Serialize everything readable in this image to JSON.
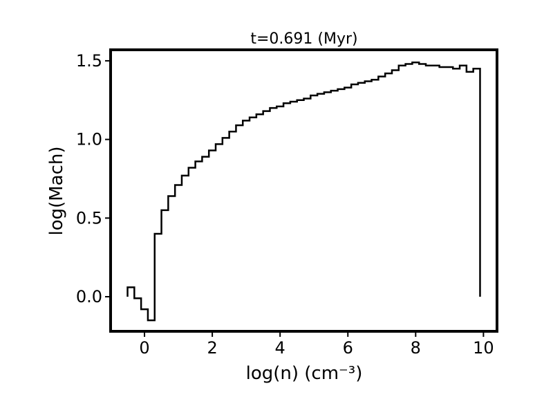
{
  "chart_data": {
    "type": "line",
    "drawstyle": "steps-mid",
    "title": "t=0.691 (Myr)",
    "xlabel": "log(n) (cm⁻³)",
    "ylabel": "log(Mach)",
    "xlim": [
      -1.0,
      10.4
    ],
    "ylim": [
      -0.22,
      1.57
    ],
    "xticks": [
      0,
      2,
      4,
      6,
      8,
      10
    ],
    "xtick_labels": [
      "0",
      "2",
      "4",
      "6",
      "8",
      "10"
    ],
    "yticks": [
      0.0,
      0.5,
      1.0,
      1.5
    ],
    "ytick_labels": [
      "0.0",
      "0.5",
      "1.0",
      "1.5"
    ],
    "grid": false,
    "legend": "none",
    "line_color": "#000000",
    "series": [
      {
        "x": [
          -0.4,
          -0.2,
          0.0,
          0.2,
          0.4,
          0.6,
          0.8,
          1.0,
          1.2,
          1.4,
          1.6,
          1.8,
          2.0,
          2.2,
          2.4,
          2.6,
          2.8,
          3.0,
          3.2,
          3.4,
          3.6,
          3.8,
          4.0,
          4.2,
          4.4,
          4.6,
          4.8,
          5.0,
          5.2,
          5.4,
          5.6,
          5.8,
          6.0,
          6.2,
          6.4,
          6.6,
          6.8,
          7.0,
          7.2,
          7.4,
          7.6,
          7.8,
          8.0,
          8.2,
          8.4,
          8.6,
          8.8,
          9.0,
          9.2,
          9.4,
          9.6,
          9.8
        ],
        "y": [
          0.06,
          -0.01,
          -0.08,
          -0.15,
          0.4,
          0.55,
          0.64,
          0.71,
          0.77,
          0.82,
          0.86,
          0.89,
          0.93,
          0.97,
          1.01,
          1.05,
          1.09,
          1.12,
          1.14,
          1.16,
          1.18,
          1.2,
          1.21,
          1.23,
          1.24,
          1.25,
          1.26,
          1.28,
          1.29,
          1.3,
          1.31,
          1.32,
          1.33,
          1.35,
          1.36,
          1.37,
          1.38,
          1.4,
          1.42,
          1.44,
          1.47,
          1.48,
          1.49,
          1.48,
          1.47,
          1.47,
          1.46,
          1.46,
          1.45,
          1.47,
          1.43,
          1.45
        ],
        "end_drop_to": 0.0
      }
    ]
  }
}
